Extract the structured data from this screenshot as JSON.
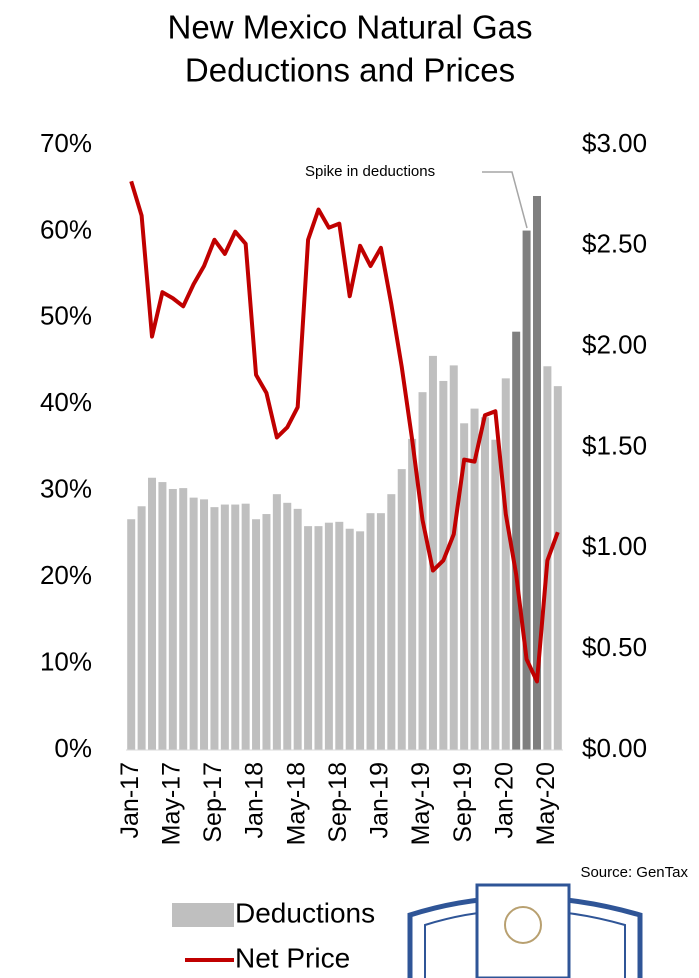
{
  "chart_data": {
    "type": "bar_line",
    "title": [
      "New Mexico Natural Gas",
      "Deductions and Prices"
    ],
    "categories": [
      "Jan-17",
      null,
      null,
      null,
      "May-17",
      null,
      null,
      null,
      "Sep-17",
      null,
      null,
      null,
      "Jan-18",
      null,
      null,
      null,
      "May-18",
      null,
      null,
      null,
      "Sep-18",
      null,
      null,
      null,
      "Jan-19",
      null,
      null,
      null,
      "May-19",
      null,
      null,
      null,
      "Sep-19",
      null,
      null,
      null,
      "Jan-20",
      null,
      null,
      null,
      "May-20",
      null
    ],
    "series": [
      {
        "name": "Deductions",
        "color": "#bfbfbf",
        "axis": "y",
        "colors": [
          "#bfbfbf",
          "#bfbfbf",
          "#bfbfbf",
          "#bfbfbf",
          "#bfbfbf",
          "#bfbfbf",
          "#bfbfbf",
          "#bfbfbf",
          "#bfbfbf",
          "#bfbfbf",
          "#bfbfbf",
          "#bfbfbf",
          "#bfbfbf",
          "#bfbfbf",
          "#bfbfbf",
          "#bfbfbf",
          "#bfbfbf",
          "#bfbfbf",
          "#bfbfbf",
          "#bfbfbf",
          "#bfbfbf",
          "#bfbfbf",
          "#bfbfbf",
          "#bfbfbf",
          "#bfbfbf",
          "#bfbfbf",
          "#bfbfbf",
          "#bfbfbf",
          "#bfbfbf",
          "#bfbfbf",
          "#bfbfbf",
          "#bfbfbf",
          "#bfbfbf",
          "#bfbfbf",
          "#bfbfbf",
          "#bfbfbf",
          "#bfbfbf",
          "#7f7f7f",
          "#7f7f7f",
          "#7f7f7f",
          "#bfbfbf",
          "#bfbfbf"
        ],
        "values": [
          26.7,
          28.2,
          31.5,
          31.0,
          30.2,
          30.3,
          29.2,
          29.0,
          28.1,
          28.4,
          28.4,
          28.5,
          26.7,
          27.3,
          29.6,
          28.6,
          27.9,
          25.9,
          25.9,
          26.3,
          26.4,
          25.6,
          25.3,
          27.4,
          27.4,
          29.6,
          32.5,
          36.0,
          41.4,
          45.6,
          42.7,
          44.5,
          37.8,
          39.5,
          38.5,
          35.9,
          43.0,
          48.4,
          60.1,
          64.1,
          44.4,
          42.1
        ]
      },
      {
        "name": "Net Price",
        "color": "#c00000",
        "axis": "y2",
        "values": [
          2.82,
          2.65,
          2.05,
          2.27,
          2.24,
          2.2,
          2.31,
          2.4,
          2.53,
          2.46,
          2.57,
          2.51,
          1.86,
          1.77,
          1.55,
          1.6,
          1.7,
          2.53,
          2.68,
          2.59,
          2.61,
          2.25,
          2.5,
          2.4,
          2.49,
          2.21,
          1.9,
          1.54,
          1.14,
          0.89,
          0.94,
          1.07,
          1.44,
          1.43,
          1.66,
          1.68,
          1.17,
          0.87,
          0.45,
          0.34,
          0.94,
          1.08
        ]
      }
    ],
    "ylim": [
      0,
      70
    ],
    "yticks": [
      {
        "value": 0,
        "label": "0%"
      },
      {
        "value": 10,
        "label": "10%"
      },
      {
        "value": 20,
        "label": "20%"
      },
      {
        "value": 30,
        "label": "30%"
      },
      {
        "value": 40,
        "label": "40%"
      },
      {
        "value": 50,
        "label": "50%"
      },
      {
        "value": 60,
        "label": "60%"
      },
      {
        "value": 70,
        "label": "70%"
      }
    ],
    "y2lim": [
      0,
      3
    ],
    "y2ticks": [
      {
        "value": 0,
        "label": "$0.00"
      },
      {
        "value": 0.5,
        "label": "$0.50"
      },
      {
        "value": 1,
        "label": "$1.00"
      },
      {
        "value": 1.5,
        "label": "$1.50"
      },
      {
        "value": 2,
        "label": "$2.00"
      },
      {
        "value": 2.5,
        "label": "$2.50"
      },
      {
        "value": 3,
        "label": "$3.00"
      }
    ],
    "annotation": "Spike in deductions",
    "source": "Source: GenTax",
    "legend": "bottom-left"
  }
}
